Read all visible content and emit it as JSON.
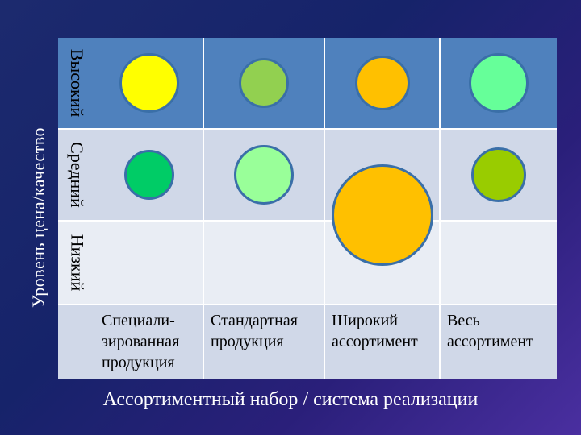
{
  "y_axis_title": "Уровень цена/качество",
  "x_axis_title": "Ассортиментный набор / система реализации",
  "rows": [
    {
      "key": "high",
      "label": "Высокий",
      "color": "#4f81bd"
    },
    {
      "key": "mid",
      "label": "Средний",
      "color": "#d0d8e8"
    },
    {
      "key": "low",
      "label": "Низкий",
      "color": "#e9edf4"
    }
  ],
  "label_row_color": "#d0d8e8",
  "columns": [
    {
      "key": "specialized",
      "label": "Специали-\nзированная\nпродукция"
    },
    {
      "key": "standard",
      "label": "Стандартная\nпродукция"
    },
    {
      "key": "wide",
      "label": "Широкий\nассортимент"
    },
    {
      "key": "full",
      "label": "Весь\nассортимент"
    }
  ],
  "bubbles": [
    {
      "column": "specialized",
      "row": "high",
      "relative_size": "large",
      "color": "#ffff00"
    },
    {
      "column": "standard",
      "row": "high",
      "relative_size": "small",
      "color": "#92d050"
    },
    {
      "column": "wide",
      "row": "high",
      "relative_size": "medium",
      "color": "#ffc000"
    },
    {
      "column": "full",
      "row": "high",
      "relative_size": "large",
      "color": "#66ff99"
    },
    {
      "column": "specialized",
      "row": "mid",
      "relative_size": "small",
      "color": "#00cc66"
    },
    {
      "column": "standard",
      "row": "mid",
      "relative_size": "large",
      "color": "#99ff99"
    },
    {
      "column": "wide",
      "row": "mid",
      "relative_size": "extra-large",
      "color": "#ffc000"
    },
    {
      "column": "full",
      "row": "mid",
      "relative_size": "medium",
      "color": "#99cc00"
    }
  ]
}
